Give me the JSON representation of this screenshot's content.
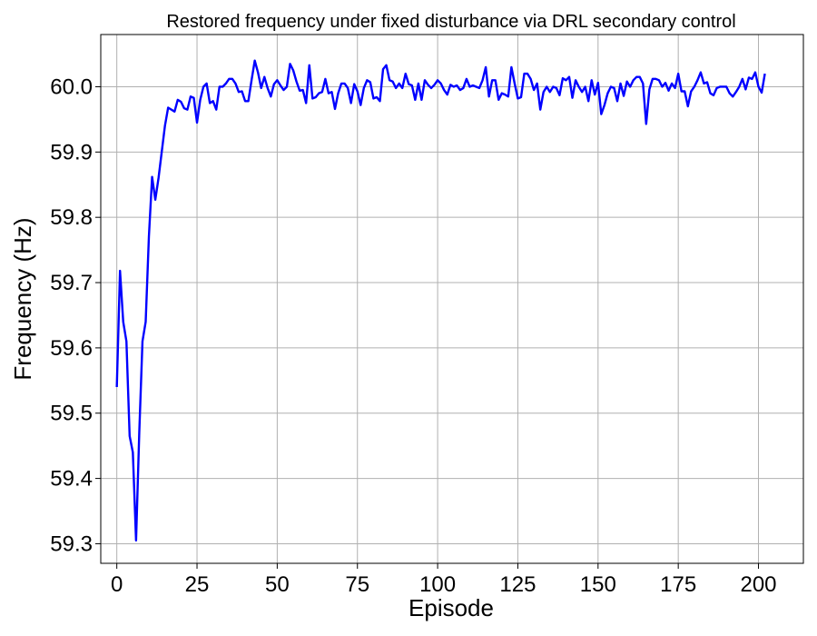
{
  "chart_data": {
    "type": "line",
    "title": "Restored frequency under fixed disturbance via DRL secondary control",
    "xlabel": "Episode",
    "ylabel": "Frequency (Hz)",
    "xlim": [
      -5,
      214
    ],
    "ylim": [
      59.27,
      60.08
    ],
    "xticks": [
      0,
      25,
      50,
      75,
      100,
      125,
      150,
      175,
      200
    ],
    "yticks": [
      59.3,
      59.4,
      59.5,
      59.6,
      59.7,
      59.8,
      59.9,
      60.0
    ],
    "xtick_labels": [
      "0",
      "25",
      "50",
      "75",
      "100",
      "125",
      "150",
      "175",
      "200"
    ],
    "ytick_labels": [
      "59.3",
      "59.4",
      "59.5",
      "59.6",
      "59.7",
      "59.8",
      "59.9",
      "60.0"
    ],
    "grid": true,
    "line_color": "#0000ff",
    "series": [
      {
        "values": [
          59.54,
          59.718,
          59.64,
          59.61,
          59.465,
          59.44,
          59.305,
          59.47,
          59.61,
          59.64,
          59.77,
          59.862,
          59.827,
          59.86,
          59.9,
          59.94,
          59.968,
          59.965,
          59.962,
          59.98,
          59.977,
          59.967,
          59.965,
          59.985,
          59.983,
          59.945,
          59.98,
          60.0,
          60.005,
          59.975,
          59.978,
          59.965,
          60.0,
          60.0,
          60.005,
          60.012,
          60.012,
          60.005,
          59.992,
          59.993,
          59.978,
          59.978,
          60.01,
          60.04,
          60.022,
          59.998,
          60.015,
          59.998,
          59.985,
          60.004,
          60.01,
          60.002,
          59.995,
          60.0,
          60.035,
          60.025,
          60.008,
          59.994,
          59.995,
          59.975,
          60.033,
          59.982,
          59.984,
          59.99,
          59.992,
          60.012,
          59.99,
          59.992,
          59.966,
          59.99,
          60.005,
          60.005,
          59.998,
          59.975,
          60.004,
          59.993,
          59.972,
          59.998,
          60.01,
          60.007,
          59.982,
          59.984,
          59.978,
          60.027,
          60.033,
          60.01,
          60.008,
          59.998,
          60.005,
          59.998,
          60.02,
          60.004,
          60.002,
          59.98,
          60.005,
          59.98,
          60.01,
          60.003,
          59.998,
          60.003,
          60.01,
          60.005,
          59.995,
          59.988,
          60.003,
          60.0,
          60.002,
          59.995,
          59.998,
          60.012,
          60.0,
          60.002,
          60.0,
          59.998,
          60.01,
          60.03,
          59.985,
          60.01,
          60.01,
          59.98,
          59.99,
          59.988,
          59.985,
          60.03,
          60.005,
          59.982,
          59.984,
          60.02,
          60.02,
          60.012,
          59.995,
          60.005,
          59.965,
          59.992,
          60.0,
          59.992,
          60.0,
          59.998,
          59.987,
          60.013,
          60.01,
          60.015,
          59.983,
          60.01,
          60.0,
          59.992,
          60.0,
          59.978,
          60.01,
          59.988,
          60.006,
          59.958,
          59.972,
          59.99,
          60.0,
          59.998,
          59.978,
          60.005,
          59.986,
          60.008,
          60.0,
          60.01,
          60.015,
          60.015,
          60.005,
          59.943,
          59.996,
          60.012,
          60.012,
          60.01,
          60.0,
          60.006,
          59.994,
          60.005,
          59.998,
          60.02,
          59.993,
          59.993,
          59.97,
          59.993,
          60.0,
          60.01,
          60.022,
          60.005,
          60.007,
          59.99,
          59.987,
          59.998,
          60.0,
          60.0,
          60.0,
          59.99,
          59.985,
          59.992,
          60.0,
          60.012,
          59.996,
          60.014,
          60.012,
          60.022,
          60.0,
          59.991,
          60.02
        ]
      }
    ]
  }
}
